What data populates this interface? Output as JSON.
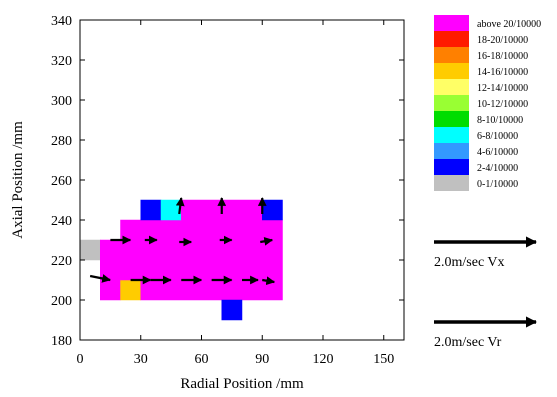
{
  "chart_data": {
    "type": "heatmap",
    "title": "",
    "xlabel": "Radial Position /mm",
    "ylabel": "Axial Position /mm",
    "xlim": [
      0,
      160
    ],
    "ylim": [
      180,
      340
    ],
    "xticks": [
      0,
      30,
      60,
      90,
      120,
      150
    ],
    "yticks": [
      180,
      200,
      220,
      240,
      260,
      280,
      300,
      320,
      340
    ],
    "grid": false,
    "legend_position": "right",
    "legend": [
      {
        "label": "above 20/10000",
        "color": "#ff00ff"
      },
      {
        "label": "18-20/10000",
        "color": "#ff1a00"
      },
      {
        "label": "16-18/10000",
        "color": "#ff8000"
      },
      {
        "label": "14-16/10000",
        "color": "#ffcc00"
      },
      {
        "label": "12-14/10000",
        "color": "#ffff66"
      },
      {
        "label": "10-12/10000",
        "color": "#99ff33"
      },
      {
        "label": "8-10/10000",
        "color": "#00dd00"
      },
      {
        "label": "6-8/10000",
        "color": "#00ffff"
      },
      {
        "label": "4-6/10000",
        "color": "#3399ff"
      },
      {
        "label": "2-4/10000",
        "color": "#0000ff"
      },
      {
        "label": "0-1/10000",
        "color": "#c0c0c0"
      }
    ],
    "cells": [
      {
        "x": [
          0,
          10
        ],
        "y": [
          220,
          230
        ],
        "class": "0-1/10000"
      },
      {
        "x": [
          10,
          20
        ],
        "y": [
          200,
          230
        ],
        "class": "above 20/10000"
      },
      {
        "x": [
          20,
          30
        ],
        "y": [
          200,
          210
        ],
        "class": "14-16/10000"
      },
      {
        "x": [
          20,
          30
        ],
        "y": [
          210,
          240
        ],
        "class": "above 20/10000"
      },
      {
        "x": [
          30,
          100
        ],
        "y": [
          200,
          240
        ],
        "class": "above 20/10000"
      },
      {
        "x": [
          30,
          40
        ],
        "y": [
          240,
          250
        ],
        "class": "2-4/10000"
      },
      {
        "x": [
          40,
          50
        ],
        "y": [
          240,
          250
        ],
        "class": "6-8/10000"
      },
      {
        "x": [
          50,
          90
        ],
        "y": [
          240,
          250
        ],
        "class": "above 20/10000"
      },
      {
        "x": [
          90,
          100
        ],
        "y": [
          240,
          250
        ],
        "class": "2-4/10000"
      },
      {
        "x": [
          70,
          80
        ],
        "y": [
          190,
          200
        ],
        "class": "2-4/10000"
      }
    ],
    "vectors": [
      {
        "x": 5,
        "y": 212,
        "u": 10,
        "v": -2
      },
      {
        "x": 15,
        "y": 230,
        "u": 10,
        "v": 0
      },
      {
        "x": 25,
        "y": 210,
        "u": 10,
        "v": 0
      },
      {
        "x": 35,
        "y": 210,
        "u": 10,
        "v": 0
      },
      {
        "x": 50,
        "y": 210,
        "u": 10,
        "v": 0
      },
      {
        "x": 65,
        "y": 210,
        "u": 10,
        "v": 0
      },
      {
        "x": 80,
        "y": 210,
        "u": 8,
        "v": 0
      },
      {
        "x": 90,
        "y": 210,
        "u": 6,
        "v": -1
      },
      {
        "x": 32,
        "y": 230,
        "u": 6,
        "v": 0
      },
      {
        "x": 49,
        "y": 229,
        "u": 6,
        "v": 0
      },
      {
        "x": 69,
        "y": 230,
        "u": 6,
        "v": 0
      },
      {
        "x": 89,
        "y": 229,
        "u": 6,
        "v": 1
      },
      {
        "x": 49,
        "y": 243,
        "u": 1,
        "v": 8
      },
      {
        "x": 70,
        "y": 243,
        "u": 0,
        "v": 8
      },
      {
        "x": 90,
        "y": 243,
        "u": 0,
        "v": 8
      }
    ],
    "reference_vectors": [
      {
        "label": "2.0m/sec Vx"
      },
      {
        "label": "2.0m/sec Vr"
      }
    ]
  }
}
